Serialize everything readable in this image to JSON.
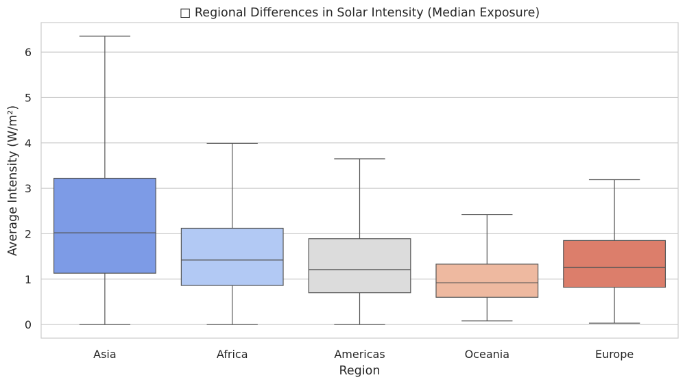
{
  "chart_data": {
    "type": "box",
    "title": "□ Regional Differences in Solar Intensity (Median Exposure)",
    "xlabel": "Region",
    "ylabel": "Average Intensity (W/m²)",
    "ylim": [
      -0.3,
      6.65
    ],
    "yticks": [
      0,
      1,
      2,
      3,
      4,
      5,
      6
    ],
    "grid": "horizontal",
    "categories": [
      "Asia",
      "Africa",
      "Americas",
      "Oceania",
      "Europe"
    ],
    "boxes": [
      {
        "category": "Asia",
        "whisker_low": 0.0,
        "q1": 1.13,
        "median": 2.02,
        "q3": 3.22,
        "whisker_high": 6.35,
        "color": "#7d9be6"
      },
      {
        "category": "Africa",
        "whisker_low": 0.0,
        "q1": 0.86,
        "median": 1.42,
        "q3": 2.12,
        "whisker_high": 3.99,
        "color": "#b2c9f4"
      },
      {
        "category": "Americas",
        "whisker_low": 0.0,
        "q1": 0.7,
        "median": 1.21,
        "q3": 1.89,
        "whisker_high": 3.65,
        "color": "#dcdcdc"
      },
      {
        "category": "Oceania",
        "whisker_low": 0.08,
        "q1": 0.6,
        "median": 0.92,
        "q3": 1.33,
        "whisker_high": 2.42,
        "color": "#eeb9a0"
      },
      {
        "category": "Europe",
        "whisker_low": 0.03,
        "q1": 0.82,
        "median": 1.26,
        "q3": 1.85,
        "whisker_high": 3.19,
        "color": "#dc7e6b"
      }
    ]
  }
}
